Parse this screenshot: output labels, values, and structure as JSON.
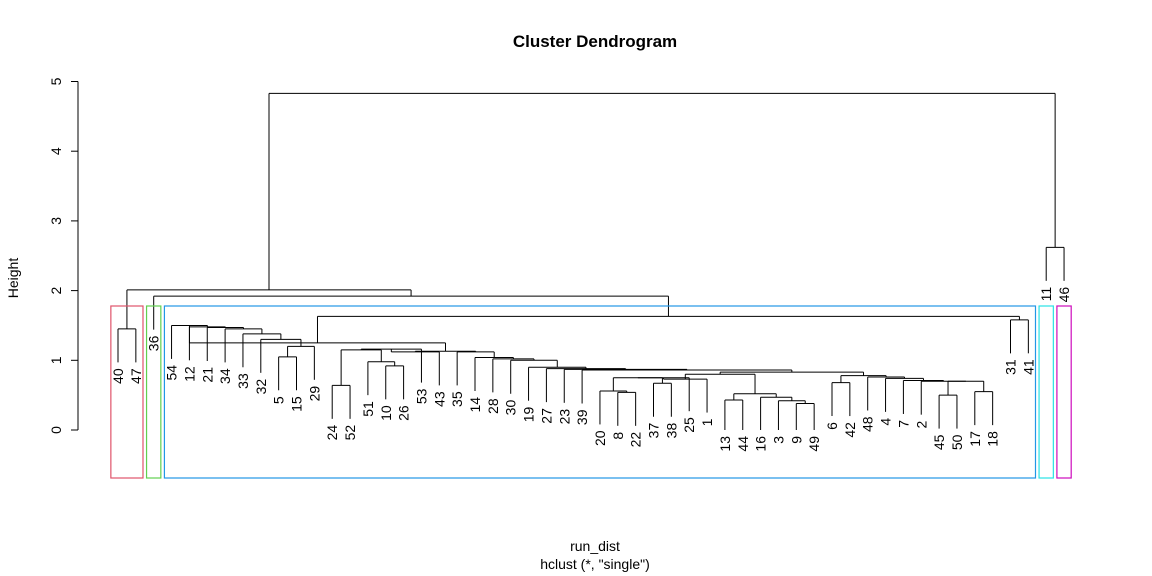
{
  "chart_data": {
    "type": "dendrogram",
    "title": "Cluster Dendrogram",
    "ylabel": "Height",
    "xlabel": "run_dist",
    "sub": "hclust (*, \"single\")",
    "ylim": [
      0,
      5
    ],
    "yticks": [
      "0",
      "1",
      "2",
      "3",
      "4",
      "5"
    ],
    "leaves": [
      "40",
      "47",
      "36",
      "54",
      "12",
      "21",
      "34",
      "33",
      "32",
      "5",
      "15",
      "29",
      "24",
      "52",
      "51",
      "10",
      "26",
      "53",
      "43",
      "35",
      "14",
      "28",
      "30",
      "19",
      "27",
      "23",
      "39",
      "20",
      "8",
      "22",
      "37",
      "38",
      "25",
      "1",
      "13",
      "44",
      "16",
      "3",
      "9",
      "49",
      "6",
      "42",
      "48",
      "4",
      "7",
      "2",
      "45",
      "50",
      "17",
      "18",
      "31",
      "41",
      "11",
      "46"
    ],
    "merges": [
      {
        "a": 40,
        "b": 47,
        "h": 1.45
      },
      {
        "a": 11,
        "b": 46,
        "h": 2.62
      },
      {
        "a": 31,
        "b": 41,
        "h": 1.58
      },
      {
        "a": 8,
        "b": 22,
        "h": 0.54
      },
      {
        "a": 20,
        "b": "20-8-22",
        "h": 0.56
      },
      {
        "a": 24,
        "b": 52,
        "h": 0.64
      },
      {
        "a": 37,
        "b": 38,
        "h": 0.67
      },
      {
        "a": 45,
        "b": 50,
        "h": 0.5
      },
      {
        "a": 17,
        "b": 18,
        "h": 0.55
      },
      {
        "a": 9,
        "b": 49,
        "h": 0.38
      },
      {
        "a": 13,
        "b": 44,
        "h": 0.43
      },
      {
        "a": 5,
        "b": 15,
        "h": 1.05
      },
      {
        "a": 10,
        "b": 26,
        "h": 0.92
      },
      {
        "a": 6,
        "b": 42,
        "h": 0.68
      }
    ],
    "rect_hclust": [
      {
        "members": [
          "40",
          "47"
        ],
        "color": "#df536b"
      },
      {
        "members": [
          "36"
        ],
        "color": "#61d04f"
      },
      {
        "members": [
          "54",
          "...",
          "41"
        ],
        "color": "#2297e6"
      },
      {
        "members": [
          "11"
        ],
        "color": "#28e2e5"
      },
      {
        "members": [
          "46"
        ],
        "color": "#cd0bbc"
      }
    ]
  }
}
